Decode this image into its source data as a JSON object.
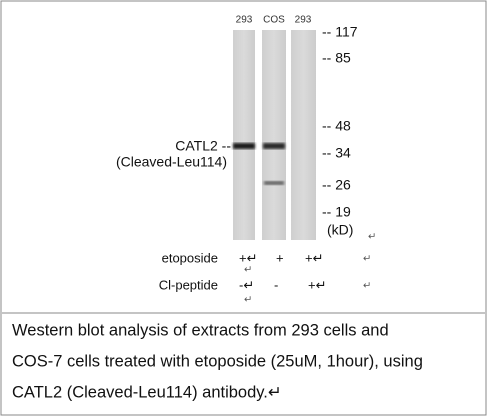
{
  "lanes": [
    "293",
    "COS",
    "293"
  ],
  "markers": [
    "-- 117",
    "-- 85",
    "-- 48",
    "-- 34",
    "-- 26",
    "-- 19"
  ],
  "unit": "(kD)",
  "unit_mark": "↵",
  "protein": [
    "CATL2 --",
    "(Cleaved-Leu114)"
  ],
  "treatments": [
    {
      "name": "etoposide",
      "values": [
        "+↵",
        "+",
        "+↵",
        "↵"
      ],
      "below": "↵"
    },
    {
      "name": "Cl-peptide",
      "values": [
        "-↵",
        "-",
        "+↵",
        "↵"
      ],
      "below": "↵"
    }
  ],
  "caption": [
    "Western blot analysis of extracts from 293 cells and",
    "COS-7 cells treated with etoposide (25uM, 1hour), using",
    "CATL2 (Cleaved-Leu114) antibody.↵"
  ]
}
